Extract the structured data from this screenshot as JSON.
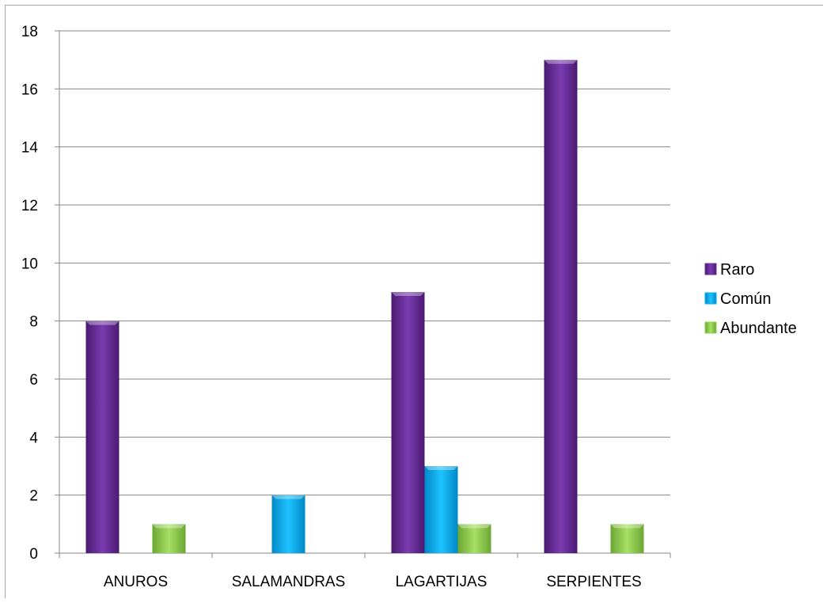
{
  "chart_data": {
    "type": "bar",
    "title": "",
    "xlabel": "",
    "ylabel": "",
    "categories": [
      "ANUROS",
      "SALAMANDRAS",
      "LAGARTIJAS",
      "SERPIENTES"
    ],
    "series": [
      {
        "name": "Raro",
        "color": "#7030a0",
        "values": [
          8,
          0,
          9,
          17
        ]
      },
      {
        "name": "Común",
        "color": "#00b0f0",
        "values": [
          0,
          2,
          3,
          0
        ]
      },
      {
        "name": "Abundante",
        "color": "#92d050",
        "values": [
          1,
          0,
          1,
          1
        ]
      }
    ],
    "ylim": [
      0,
      18
    ],
    "yticks": [
      0,
      2,
      4,
      6,
      8,
      10,
      12,
      14,
      16,
      18
    ],
    "grid": true,
    "legend": "right"
  }
}
